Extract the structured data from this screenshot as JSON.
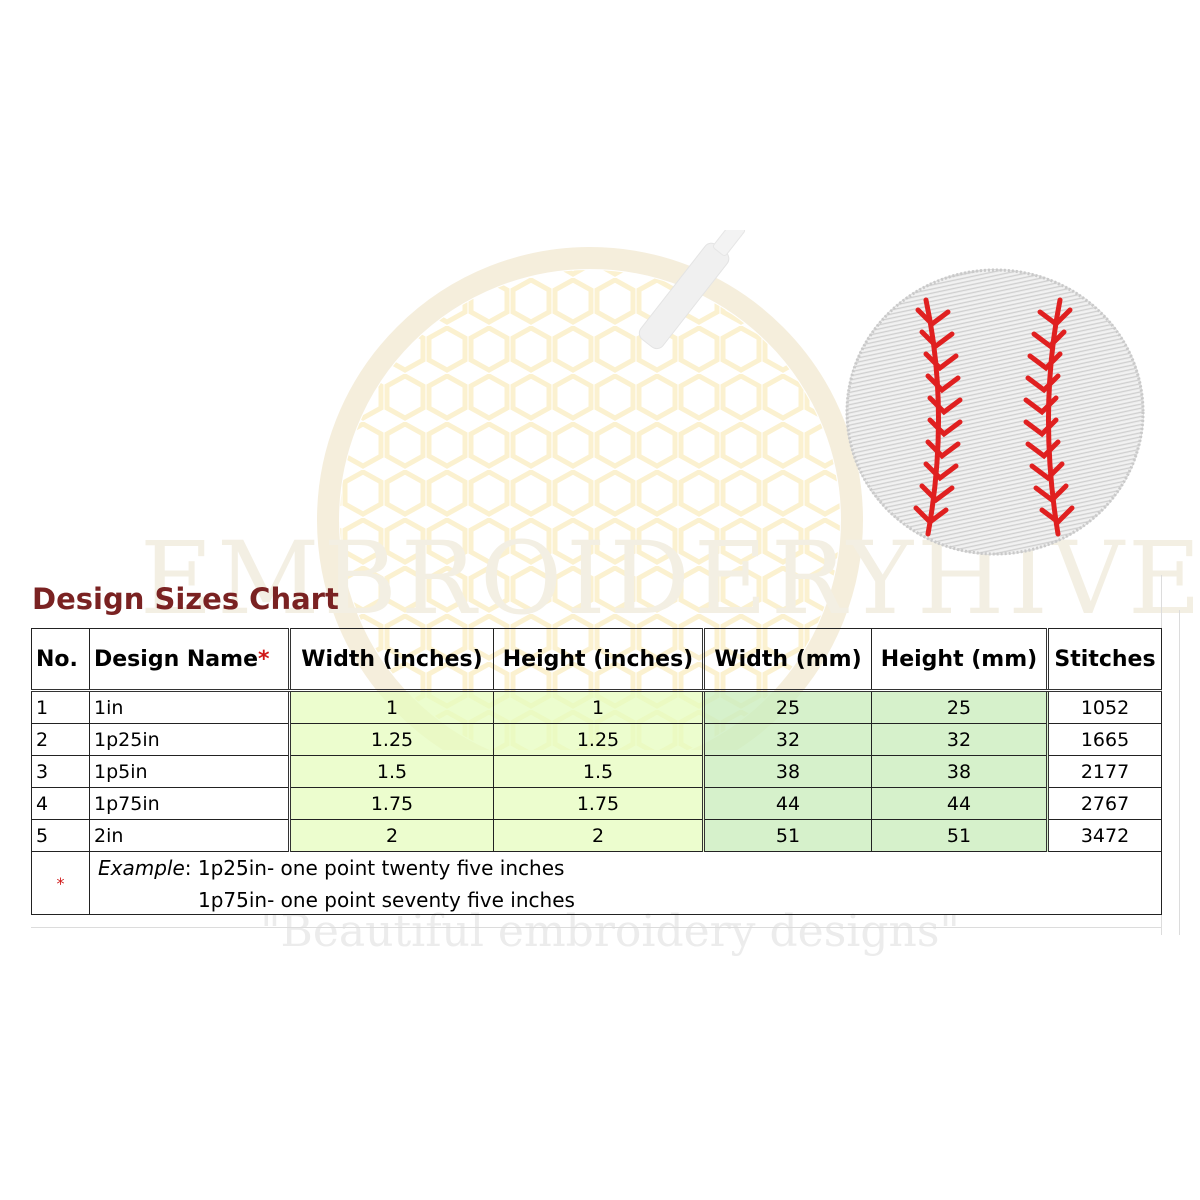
{
  "watermark": {
    "brand": "EMBROIDERYHIVE",
    "tagline": "\"Beautiful embroidery designs\""
  },
  "chart": {
    "title": "Design Sizes Chart",
    "columns": {
      "no": "No.",
      "design_name": "Design Name",
      "required_mark": "*",
      "width_in": "Width (inches)",
      "height_in": "Height (inches)",
      "width_mm": "Width (mm)",
      "height_mm": "Height (mm)",
      "stitches": "Stitches"
    },
    "rows": [
      {
        "no": "1",
        "name": "1in",
        "width_in": "1",
        "height_in": "1",
        "width_mm": "25",
        "height_mm": "25",
        "stitches": "1052"
      },
      {
        "no": "2",
        "name": "1p25in",
        "width_in": "1.25",
        "height_in": "1.25",
        "width_mm": "32",
        "height_mm": "32",
        "stitches": "1665"
      },
      {
        "no": "3",
        "name": "1p5in",
        "width_in": "1.5",
        "height_in": "1.5",
        "width_mm": "38",
        "height_mm": "38",
        "stitches": "2177"
      },
      {
        "no": "4",
        "name": "1p75in",
        "width_in": "1.75",
        "height_in": "1.75",
        "width_mm": "44",
        "height_mm": "44",
        "stitches": "2767"
      },
      {
        "no": "5",
        "name": "2in",
        "width_in": "2",
        "height_in": "2",
        "width_mm": "51",
        "height_mm": "51",
        "stitches": "3472"
      }
    ],
    "note": {
      "star": "*",
      "label": "Example",
      "line1": ": 1p25in- one point  twenty five inches",
      "line2": "1p75in- one point  seventy five inches"
    }
  },
  "colors": {
    "title": "#7a2222",
    "required_mark": "#d01818",
    "inches_fill": "#e6fcbe",
    "mm_fill": "#cceebe",
    "stitch_red": "#e02020"
  }
}
